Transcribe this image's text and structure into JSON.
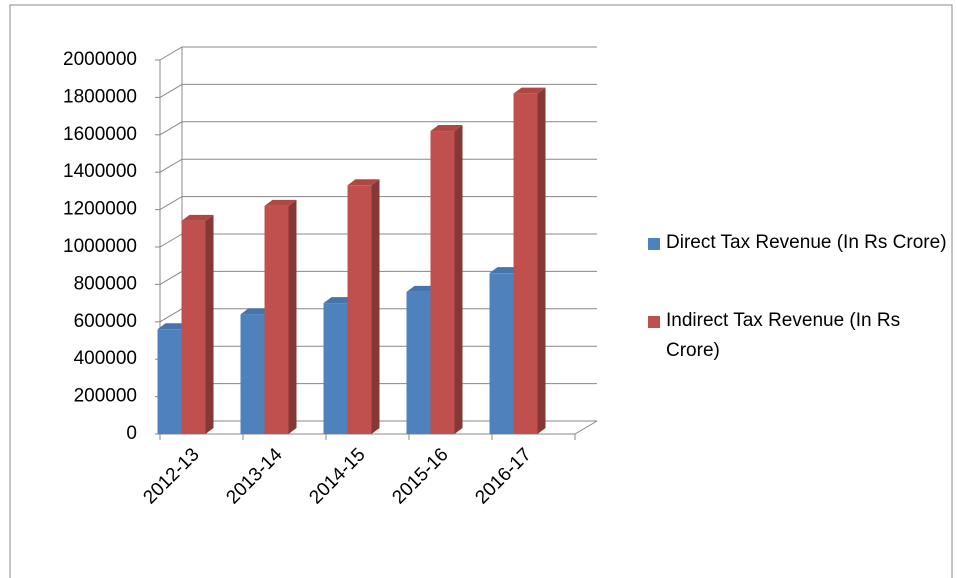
{
  "chart_data": {
    "type": "bar3d",
    "categories": [
      "2012-13",
      "2013-14",
      "2014-15",
      "2015-16",
      "2016-17"
    ],
    "series": [
      {
        "name": "Direct Tax Revenue (In Rs Crore)",
        "color": "#4f81bd",
        "values": [
          560000,
          640000,
          700000,
          760000,
          860000
        ]
      },
      {
        "name": "Indirect Tax Revenue (In Rs Crore)",
        "color": "#c0504d",
        "values": [
          1140000,
          1220000,
          1330000,
          1620000,
          1820000
        ]
      }
    ],
    "ylim": [
      0,
      2000000
    ],
    "yticks": [
      0,
      200000,
      400000,
      600000,
      800000,
      1000000,
      1200000,
      1400000,
      1600000,
      1800000,
      2000000
    ],
    "grid": true
  }
}
